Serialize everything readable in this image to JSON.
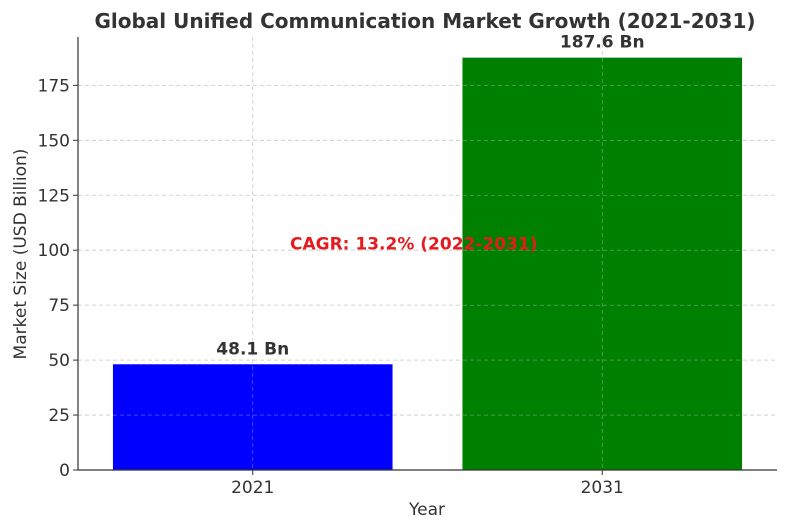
{
  "chart_data": {
    "type": "bar",
    "title": "Global Unified Communication Market Growth (2021-2031)",
    "xlabel": "Year",
    "ylabel": "Market Size (USD Billion)",
    "categories": [
      "2021",
      "2031"
    ],
    "values": [
      48.1,
      187.6
    ],
    "bar_colors": [
      "#0000ff",
      "#008000"
    ],
    "data_labels": [
      "48.1 Bn",
      "187.6 Bn"
    ],
    "yticks": [
      0,
      25,
      50,
      75,
      100,
      125,
      150,
      175
    ],
    "ylim": [
      0,
      197
    ],
    "grid": true,
    "annotation": {
      "text": "CAGR: 13.2% (2022-2031)",
      "color": "#e41a1c",
      "y": 103
    }
  }
}
